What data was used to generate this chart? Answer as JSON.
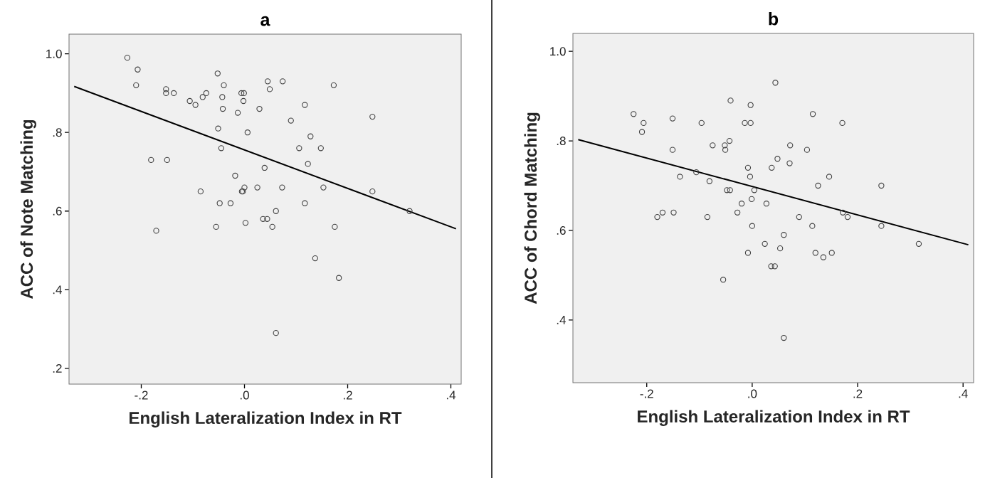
{
  "chart_data": [
    {
      "type": "scatter",
      "title": "a",
      "xlabel": "English Lateralization Index in RT",
      "ylabel": "ACC of Note Matching",
      "marker": "circle",
      "xlim": [
        -0.34,
        0.42
      ],
      "ylim": [
        0.16,
        1.05
      ],
      "xticks": [
        {
          "value": -0.2,
          "label": "-.2"
        },
        {
          "value": 0,
          "label": ".0"
        },
        {
          "value": 0.2,
          "label": ".2"
        },
        {
          "value": 0.4,
          "label": ".4"
        }
      ],
      "yticks": [
        {
          "value": 0.2,
          "label": ".2"
        },
        {
          "value": 0.4,
          "label": ".4"
        },
        {
          "value": 0.6,
          "label": ".6"
        },
        {
          "value": 0.8,
          "label": ".8"
        },
        {
          "value": 1.0,
          "label": "1.0"
        }
      ],
      "series": [
        {
          "type": "scatter",
          "color": "#404040",
          "x": [
            -0.227,
            -0.207,
            -0.21,
            -0.152,
            -0.152,
            -0.137,
            -0.106,
            -0.095,
            -0.081,
            -0.074,
            -0.052,
            -0.04,
            -0.043,
            -0.042,
            -0.006,
            -0.001,
            -0.002,
            -0.013,
            0.029,
            -0.051,
            0.006,
            -0.045,
            -0.181,
            -0.15,
            0.039,
            -0.018,
            -0.085,
            0.0,
            -0.005,
            -0.003,
            0.025,
            -0.048,
            -0.027,
            0.002,
            -0.055,
            0.036,
            -0.171,
            0.045,
            0.074,
            0.049,
            0.173,
            0.117,
            0.09,
            0.248,
            0.128,
            0.106,
            0.148,
            0.123,
            0.073,
            0.153,
            0.248,
            0.32,
            0.117,
            0.061,
            0.044,
            0.054,
            0.175,
            0.137,
            0.183,
            0.061
          ],
          "values": [
            0.99,
            0.96,
            0.92,
            0.91,
            0.9,
            0.9,
            0.88,
            0.87,
            0.89,
            0.9,
            0.95,
            0.92,
            0.89,
            0.86,
            0.9,
            0.9,
            0.88,
            0.85,
            0.86,
            0.81,
            0.8,
            0.76,
            0.73,
            0.73,
            0.71,
            0.69,
            0.65,
            0.66,
            0.65,
            0.65,
            0.66,
            0.62,
            0.62,
            0.57,
            0.56,
            0.58,
            0.55,
            0.93,
            0.93,
            0.91,
            0.92,
            0.87,
            0.83,
            0.84,
            0.79,
            0.76,
            0.76,
            0.72,
            0.66,
            0.66,
            0.65,
            0.6,
            0.62,
            0.6,
            0.58,
            0.56,
            0.56,
            0.48,
            0.43,
            0.29
          ]
        },
        {
          "type": "line",
          "marker": "none",
          "color": "#000000",
          "x": [
            -0.33,
            0.41
          ],
          "values": [
            0.917,
            0.555
          ]
        }
      ]
    },
    {
      "type": "scatter",
      "title": "b",
      "xlabel": "English Lateralization Index in RT",
      "ylabel": "ACC of Chord Matching",
      "marker": "circle",
      "xlim": [
        -0.34,
        0.42
      ],
      "ylim": [
        0.26,
        1.04
      ],
      "xticks": [
        {
          "value": -0.2,
          "label": "-.2"
        },
        {
          "value": 0,
          "label": ".0"
        },
        {
          "value": 0.2,
          "label": ".2"
        },
        {
          "value": 0.4,
          "label": ".4"
        }
      ],
      "yticks": [
        {
          "value": 0.4,
          "label": ".4"
        },
        {
          "value": 0.6,
          "label": ".6"
        },
        {
          "value": 0.8,
          "label": ".8"
        },
        {
          "value": 1.0,
          "label": "1.0"
        }
      ],
      "series": [
        {
          "type": "scatter",
          "color": "#404040",
          "x": [
            -0.225,
            -0.206,
            -0.209,
            -0.151,
            -0.096,
            -0.041,
            -0.003,
            -0.014,
            -0.003,
            -0.151,
            -0.075,
            -0.052,
            -0.051,
            -0.043,
            -0.106,
            -0.137,
            -0.081,
            -0.008,
            -0.004,
            -0.048,
            -0.042,
            0.004,
            -0.001,
            -0.02,
            -0.028,
            -0.18,
            -0.17,
            -0.149,
            -0.085,
            0.0,
            -0.008,
            -0.055,
            0.044,
            0.115,
            0.171,
            0.072,
            0.104,
            0.048,
            0.037,
            0.071,
            0.146,
            0.245,
            0.125,
            0.027,
            0.089,
            0.172,
            0.181,
            0.114,
            0.245,
            0.06,
            0.024,
            0.053,
            0.316,
            0.12,
            0.151,
            0.135,
            0.036,
            0.043,
            0.06
          ],
          "values": [
            0.86,
            0.84,
            0.82,
            0.85,
            0.84,
            0.89,
            0.88,
            0.84,
            0.84,
            0.78,
            0.79,
            0.79,
            0.78,
            0.8,
            0.73,
            0.72,
            0.71,
            0.74,
            0.72,
            0.69,
            0.69,
            0.69,
            0.67,
            0.66,
            0.64,
            0.63,
            0.64,
            0.64,
            0.63,
            0.61,
            0.55,
            0.49,
            0.93,
            0.86,
            0.84,
            0.79,
            0.78,
            0.76,
            0.74,
            0.75,
            0.72,
            0.7,
            0.7,
            0.66,
            0.63,
            0.64,
            0.63,
            0.61,
            0.61,
            0.59,
            0.57,
            0.56,
            0.57,
            0.55,
            0.55,
            0.54,
            0.52,
            0.52,
            0.36
          ]
        },
        {
          "type": "line",
          "marker": "none",
          "color": "#000000",
          "x": [
            -0.33,
            0.41
          ],
          "values": [
            0.803,
            0.568
          ]
        }
      ]
    }
  ]
}
